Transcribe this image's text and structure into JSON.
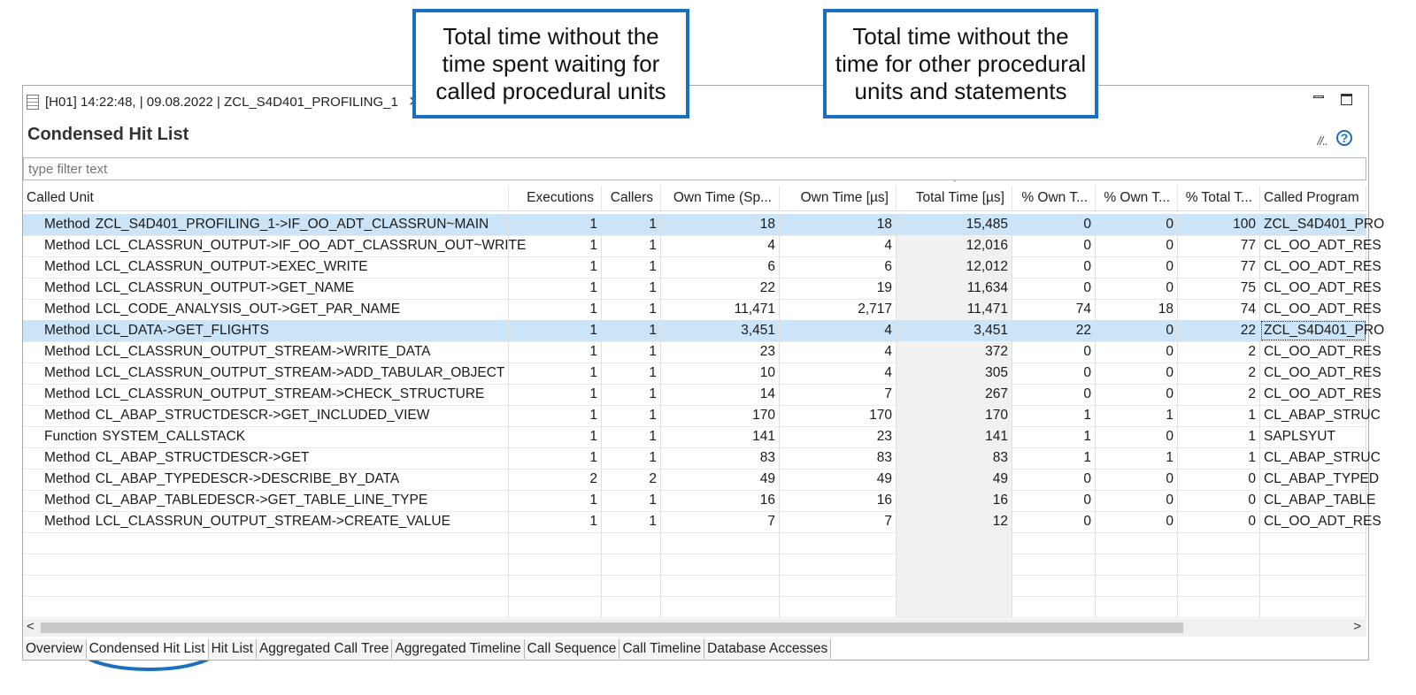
{
  "editor_tab": {
    "title": "[H01] 14:22:48, | 09.08.2022 | ZCL_S4D401_PROFILING_1",
    "close_glyph": "×"
  },
  "view": {
    "title": "Condensed Hit List",
    "filter_placeholder": "type filter text",
    "help_glyph": "?",
    "tool_glyph": "//.."
  },
  "columns": [
    "Called Unit",
    "Executions",
    "Callers",
    "Own Time (Sp...",
    "Own Time [µs]",
    "Total Time [µs]",
    "% Own T...",
    "% Own T...",
    "% Total T...",
    "Called Program"
  ],
  "rows": [
    {
      "kind": "Method",
      "unit": "ZCL_S4D401_PROFILING_1->IF_OO_ADT_CLASSRUN~MAIN",
      "executions": "1",
      "callers": "1",
      "own_sp": "18",
      "own": "18",
      "total": "15,485",
      "pct_own1": "0",
      "pct_own2": "0",
      "pct_total": "100",
      "program": "ZCL_S4D401_PRO"
    },
    {
      "kind": "Method",
      "unit": "LCL_CLASSRUN_OUTPUT->IF_OO_ADT_CLASSRUN_OUT~WRITE",
      "executions": "1",
      "callers": "1",
      "own_sp": "4",
      "own": "4",
      "total": "12,016",
      "pct_own1": "0",
      "pct_own2": "0",
      "pct_total": "77",
      "program": "CL_OO_ADT_RES"
    },
    {
      "kind": "Method",
      "unit": "LCL_CLASSRUN_OUTPUT->EXEC_WRITE",
      "executions": "1",
      "callers": "1",
      "own_sp": "6",
      "own": "6",
      "total": "12,012",
      "pct_own1": "0",
      "pct_own2": "0",
      "pct_total": "77",
      "program": "CL_OO_ADT_RES"
    },
    {
      "kind": "Method",
      "unit": "LCL_CLASSRUN_OUTPUT->GET_NAME",
      "executions": "1",
      "callers": "1",
      "own_sp": "22",
      "own": "19",
      "total": "11,634",
      "pct_own1": "0",
      "pct_own2": "0",
      "pct_total": "75",
      "program": "CL_OO_ADT_RES"
    },
    {
      "kind": "Method",
      "unit": "LCL_CODE_ANALYSIS_OUT->GET_PAR_NAME",
      "executions": "1",
      "callers": "1",
      "own_sp": "11,471",
      "own": "2,717",
      "total": "11,471",
      "pct_own1": "74",
      "pct_own2": "18",
      "pct_total": "74",
      "program": "CL_OO_ADT_RES"
    },
    {
      "kind": "Method",
      "unit": "LCL_DATA->GET_FLIGHTS",
      "executions": "1",
      "callers": "1",
      "own_sp": "3,451",
      "own": "4",
      "total": "3,451",
      "pct_own1": "22",
      "pct_own2": "0",
      "pct_total": "22",
      "program": "ZCL_S4D401_PRO"
    },
    {
      "kind": "Method",
      "unit": "LCL_CLASSRUN_OUTPUT_STREAM->WRITE_DATA",
      "executions": "1",
      "callers": "1",
      "own_sp": "23",
      "own": "4",
      "total": "372",
      "pct_own1": "0",
      "pct_own2": "0",
      "pct_total": "2",
      "program": "CL_OO_ADT_RES"
    },
    {
      "kind": "Method",
      "unit": "LCL_CLASSRUN_OUTPUT_STREAM->ADD_TABULAR_OBJECT",
      "executions": "1",
      "callers": "1",
      "own_sp": "10",
      "own": "4",
      "total": "305",
      "pct_own1": "0",
      "pct_own2": "0",
      "pct_total": "2",
      "program": "CL_OO_ADT_RES"
    },
    {
      "kind": "Method",
      "unit": "LCL_CLASSRUN_OUTPUT_STREAM->CHECK_STRUCTURE",
      "executions": "1",
      "callers": "1",
      "own_sp": "14",
      "own": "7",
      "total": "267",
      "pct_own1": "0",
      "pct_own2": "0",
      "pct_total": "2",
      "program": "CL_OO_ADT_RES"
    },
    {
      "kind": "Method",
      "unit": "CL_ABAP_STRUCTDESCR->GET_INCLUDED_VIEW",
      "executions": "1",
      "callers": "1",
      "own_sp": "170",
      "own": "170",
      "total": "170",
      "pct_own1": "1",
      "pct_own2": "1",
      "pct_total": "1",
      "program": "CL_ABAP_STRUC"
    },
    {
      "kind": "Function",
      "unit": "SYSTEM_CALLSTACK",
      "executions": "1",
      "callers": "1",
      "own_sp": "141",
      "own": "23",
      "total": "141",
      "pct_own1": "1",
      "pct_own2": "0",
      "pct_total": "1",
      "program": "SAPLSYUT"
    },
    {
      "kind": "Method",
      "unit": "CL_ABAP_STRUCTDESCR->GET",
      "executions": "1",
      "callers": "1",
      "own_sp": "83",
      "own": "83",
      "total": "83",
      "pct_own1": "1",
      "pct_own2": "1",
      "pct_total": "1",
      "program": "CL_ABAP_STRUC"
    },
    {
      "kind": "Method",
      "unit": "CL_ABAP_TYPEDESCR->DESCRIBE_BY_DATA",
      "executions": "2",
      "callers": "2",
      "own_sp": "49",
      "own": "49",
      "total": "49",
      "pct_own1": "0",
      "pct_own2": "0",
      "pct_total": "0",
      "program": "CL_ABAP_TYPED"
    },
    {
      "kind": "Method",
      "unit": "CL_ABAP_TABLEDESCR->GET_TABLE_LINE_TYPE",
      "executions": "1",
      "callers": "1",
      "own_sp": "16",
      "own": "16",
      "total": "16",
      "pct_own1": "0",
      "pct_own2": "0",
      "pct_total": "0",
      "program": "CL_ABAP_TABLE"
    },
    {
      "kind": "Method",
      "unit": "LCL_CLASSRUN_OUTPUT_STREAM->CREATE_VALUE",
      "executions": "1",
      "callers": "1",
      "own_sp": "7",
      "own": "7",
      "total": "12",
      "pct_own1": "0",
      "pct_own2": "0",
      "pct_total": "0",
      "program": "CL_OO_ADT_RES"
    }
  ],
  "bottom_tabs": [
    "Overview",
    "Condensed Hit List",
    "Hit List",
    "Aggregated Call Tree",
    "Aggregated Timeline",
    "Call Sequence",
    "Call Timeline",
    "Database Accesses"
  ],
  "callouts": [
    "Total time without the time spent waiting for called procedural units",
    "Total time without the time for other procedural units and statements"
  ],
  "colors": {
    "callout_border": "#1a6fc0",
    "selection": "#cce4f7"
  },
  "scroll": {
    "left": "<",
    "right": ">"
  }
}
